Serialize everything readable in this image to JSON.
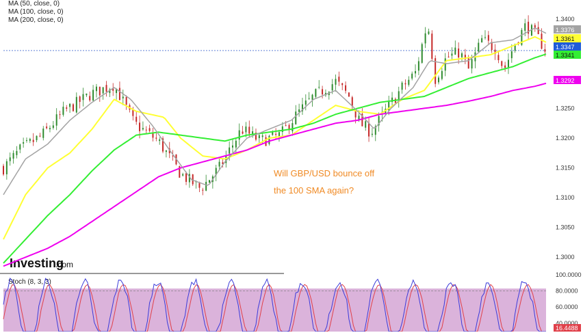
{
  "indicator_legend": [
    {
      "label": "MA (50, close, 0)",
      "color": "#ffff33"
    },
    {
      "label": "MA (100, close, 0)",
      "color": "#33ee33"
    },
    {
      "label": "MA (200, close, 0)",
      "color": "#ee00ee"
    }
  ],
  "annotation": {
    "line1": "Will GBP/USD bounce off",
    "line2": "the 100 SMA again?",
    "color": "#f08a24"
  },
  "watermark": {
    "brand": "Investing",
    "suffix": ".com"
  },
  "stoch_title": "Stoch (8, 3, 3)",
  "colors": {
    "up": "#2e8b2e",
    "down": "#c62828",
    "ma_gray": "#a3a3a3",
    "stoch_fill": "#dbb3db",
    "stoch_k": "#3b3bd9",
    "stoch_d": "#e0404a"
  },
  "chart_data": [
    {
      "type": "candlestick",
      "title": "",
      "pair": "GBP/USD",
      "ylim": [
        1.2975,
        1.3425
      ],
      "y_ticks": [
        "1.3400",
        "1.3350",
        "1.3300",
        "1.3250",
        "1.3200",
        "1.3150",
        "1.3100",
        "1.3050",
        "1.3000"
      ],
      "current_price": 1.3347,
      "price_path": [
        [
          0,
          1.315
        ],
        [
          15,
          1.318
        ],
        [
          35,
          1.3205
        ],
        [
          55,
          1.3245
        ],
        [
          80,
          1.3275
        ],
        [
          100,
          1.329
        ],
        [
          118,
          1.3225
        ],
        [
          140,
          1.3195
        ],
        [
          160,
          1.314
        ],
        [
          178,
          1.3115
        ],
        [
          195,
          1.315
        ],
        [
          215,
          1.3215
        ],
        [
          232,
          1.3195
        ],
        [
          250,
          1.3205
        ],
        [
          265,
          1.324
        ],
        [
          280,
          1.327
        ],
        [
          300,
          1.3295
        ],
        [
          312,
          1.327
        ],
        [
          322,
          1.3225
        ],
        [
          332,
          1.321
        ],
        [
          345,
          1.3245
        ],
        [
          360,
          1.3285
        ],
        [
          372,
          1.331
        ],
        [
          383,
          1.3395
        ],
        [
          390,
          1.33
        ],
        [
          400,
          1.3335
        ],
        [
          412,
          1.3345
        ],
        [
          420,
          1.3315
        ],
        [
          432,
          1.3365
        ],
        [
          445,
          1.335
        ],
        [
          452,
          1.3315
        ],
        [
          462,
          1.336
        ],
        [
          472,
          1.339
        ],
        [
          482,
          1.337
        ],
        [
          490,
          1.3347
        ]
      ],
      "series": [
        {
          "name": "MA (50, close, 0)",
          "color": "#ffff33",
          "values": [
            [
              0,
              1.303
            ],
            [
              20,
              1.3105
            ],
            [
              40,
              1.315
            ],
            [
              60,
              1.3175
            ],
            [
              80,
              1.3215
            ],
            [
              100,
              1.3265
            ],
            [
              120,
              1.3245
            ],
            [
              145,
              1.3235
            ],
            [
              160,
              1.32
            ],
            [
              180,
              1.317
            ],
            [
              200,
              1.3165
            ],
            [
              220,
              1.318
            ],
            [
              240,
              1.32
            ],
            [
              260,
              1.3205
            ],
            [
              280,
              1.323
            ],
            [
              300,
              1.3255
            ],
            [
              320,
              1.3245
            ],
            [
              340,
              1.324
            ],
            [
              360,
              1.3265
            ],
            [
              380,
              1.328
            ],
            [
              400,
              1.333
            ],
            [
              420,
              1.3335
            ],
            [
              440,
              1.334
            ],
            [
              460,
              1.3355
            ],
            [
              480,
              1.337
            ],
            [
              490,
              1.3361
            ]
          ]
        },
        {
          "name": "MA (100, close, 0)",
          "color": "#33ee33",
          "values": [
            [
              0,
              1.299
            ],
            [
              20,
              1.303
            ],
            [
              40,
              1.307
            ],
            [
              60,
              1.3105
            ],
            [
              80,
              1.3145
            ],
            [
              100,
              1.318
            ],
            [
              120,
              1.3205
            ],
            [
              140,
              1.321
            ],
            [
              160,
              1.3205
            ],
            [
              180,
              1.32
            ],
            [
              200,
              1.3195
            ],
            [
              220,
              1.3205
            ],
            [
              240,
              1.321
            ],
            [
              260,
              1.3215
            ],
            [
              280,
              1.3225
            ],
            [
              300,
              1.324
            ],
            [
              320,
              1.325
            ],
            [
              340,
              1.326
            ],
            [
              360,
              1.3265
            ],
            [
              380,
              1.327
            ],
            [
              400,
              1.3285
            ],
            [
              420,
              1.33
            ],
            [
              440,
              1.331
            ],
            [
              460,
              1.332
            ],
            [
              480,
              1.3335
            ],
            [
              490,
              1.3341
            ]
          ]
        },
        {
          "name": "MA (200, close, 0)",
          "color": "#ee00ee",
          "values": [
            [
              0,
              1.2985
            ],
            [
              20,
              1.3
            ],
            [
              40,
              1.3015
            ],
            [
              60,
              1.3035
            ],
            [
              80,
              1.306
            ],
            [
              100,
              1.3085
            ],
            [
              120,
              1.311
            ],
            [
              140,
              1.3135
            ],
            [
              160,
              1.315
            ],
            [
              180,
              1.316
            ],
            [
              200,
              1.317
            ],
            [
              220,
              1.318
            ],
            [
              240,
              1.3195
            ],
            [
              260,
              1.3205
            ],
            [
              280,
              1.3215
            ],
            [
              300,
              1.3225
            ],
            [
              320,
              1.323
            ],
            [
              340,
              1.324
            ],
            [
              360,
              1.3245
            ],
            [
              380,
              1.325
            ],
            [
              400,
              1.3255
            ],
            [
              420,
              1.3262
            ],
            [
              440,
              1.327
            ],
            [
              460,
              1.328
            ],
            [
              480,
              1.3287
            ],
            [
              490,
              1.3292
            ]
          ]
        },
        {
          "name": "",
          "color": "#a3a3a3",
          "values": [
            [
              0,
              1.3105
            ],
            [
              20,
              1.3165
            ],
            [
              40,
              1.319
            ],
            [
              60,
              1.323
            ],
            [
              80,
              1.326
            ],
            [
              100,
              1.3285
            ],
            [
              115,
              1.3265
            ],
            [
              135,
              1.322
            ],
            [
              150,
              1.318
            ],
            [
              170,
              1.313
            ],
            [
              185,
              1.312
            ],
            [
              200,
              1.316
            ],
            [
              220,
              1.32
            ],
            [
              240,
              1.3215
            ],
            [
              260,
              1.323
            ],
            [
              280,
              1.3265
            ],
            [
              300,
              1.328
            ],
            [
              320,
              1.3245
            ],
            [
              335,
              1.3215
            ],
            [
              350,
              1.325
            ],
            [
              370,
              1.3285
            ],
            [
              385,
              1.333
            ],
            [
              400,
              1.3325
            ],
            [
              420,
              1.333
            ],
            [
              440,
              1.336
            ],
            [
              460,
              1.3365
            ],
            [
              480,
              1.3385
            ],
            [
              490,
              1.3376
            ]
          ]
        }
      ],
      "price_labels": [
        {
          "value": "1.3376",
          "color": "#a3a3a3"
        },
        {
          "value": "1.3361",
          "color": "#ffff33"
        },
        {
          "value": "1.3347",
          "color": "#1e5bd8"
        },
        {
          "value": "1.3341",
          "color": "#33ee33"
        },
        {
          "value": "1.3292",
          "color": "#ee00ee"
        }
      ]
    },
    {
      "type": "line",
      "title": "Stoch (8, 3, 3)",
      "ylim": [
        0,
        100
      ],
      "y_ticks": [
        "100.0000",
        "80.0000",
        "60.0000",
        "40.0000"
      ],
      "current_label": "16.4488",
      "overbought": 80,
      "oversold": 20
    }
  ]
}
